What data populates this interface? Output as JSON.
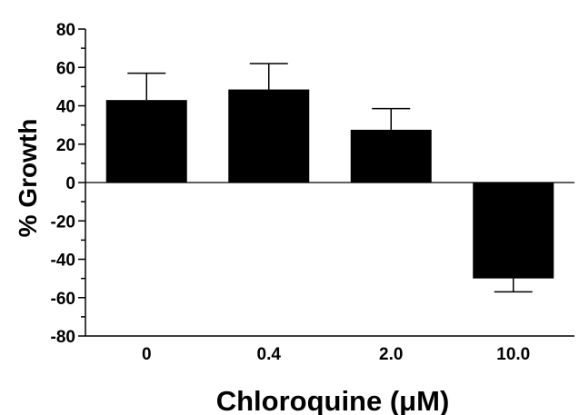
{
  "chart_data": {
    "type": "bar",
    "categories": [
      "0",
      "0.4",
      "2.0",
      "10.0"
    ],
    "values": [
      43,
      48.5,
      27.5,
      -50
    ],
    "error_bars": [
      14,
      13.5,
      11,
      7
    ],
    "title": "",
    "xlabel": "Chloroquine (μM)",
    "ylabel": "% Growth",
    "ylim": [
      -80,
      80
    ],
    "yticks": [
      "80",
      "60",
      "40",
      "20",
      "0",
      "-20",
      "-40",
      "-60",
      "-80"
    ],
    "grid": false,
    "bar_color": "#000000"
  }
}
